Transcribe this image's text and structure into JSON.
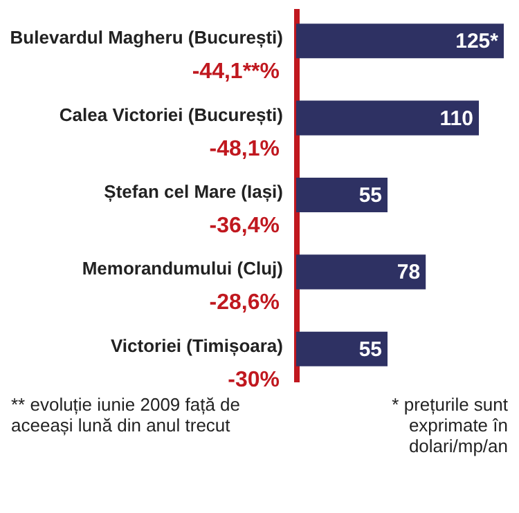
{
  "chart_data": {
    "type": "bar",
    "orientation": "horizontal",
    "categories": [
      "Bulevardul Magheru (București)",
      "Calea Victoriei (București)",
      "Ștefan cel Mare (Iași)",
      "Memorandumului (Cluj)",
      "Victoriei (Timișoara)"
    ],
    "values": [
      125,
      110,
      55,
      78,
      55
    ],
    "color": "#2e3163",
    "value_labels": [
      "125*",
      "110",
      "55",
      "78",
      "55"
    ],
    "grid": false,
    "annotations": [
      "-44,1**%",
      "-48,1%",
      "-36,4%",
      "-28,6%",
      "-30%",
      "** evoluție iunie 2009 față de aceeași lună din anul trecut",
      "* prețurile sunt exprimate în dolari/mp/an"
    ]
  }
}
